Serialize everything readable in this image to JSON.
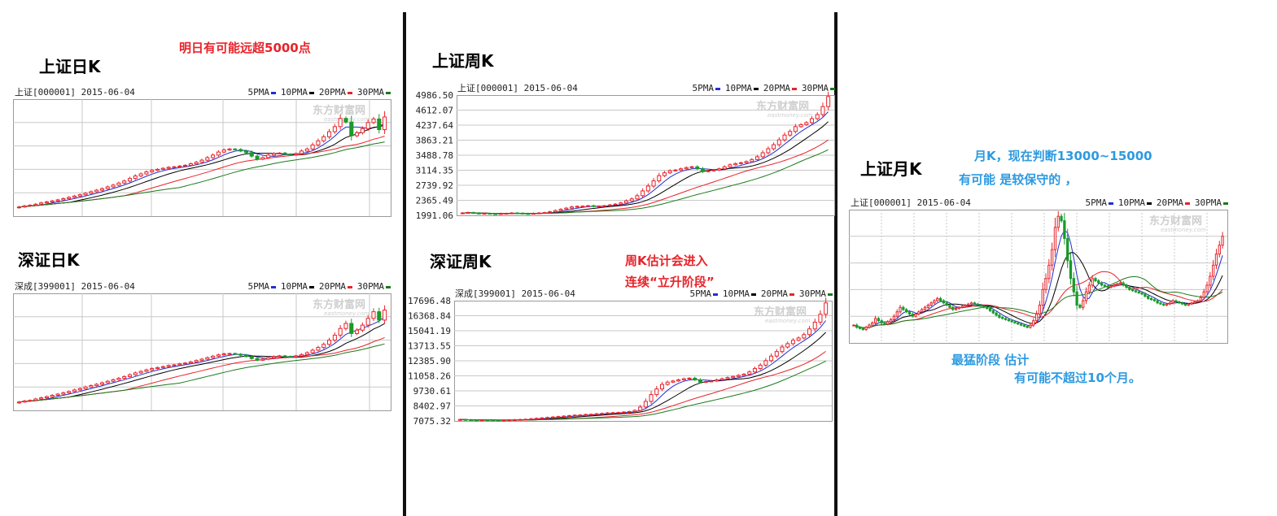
{
  "sections": {
    "sh_daily_title": "上证日K",
    "sz_daily_title": "深证日K",
    "sh_weekly_title": "上证周K",
    "sz_weekly_title": "深证周K",
    "sh_monthly_title": "上证月K"
  },
  "notes": {
    "daily": "明日有可能远超5000点",
    "weekly_1": "周K估计会进入",
    "weekly_2": "连续“立升阶段”",
    "monthly_1": "月K，现在判断13000~15000",
    "monthly_2": "有可能 是较保守的 ，",
    "monthly_3": "最猛阶段 估计",
    "monthly_4": "有可能不超过10个月。"
  },
  "colors": {
    "up": "#e8232a",
    "down": "#1a9a2a",
    "ma5": "#1f2fd4",
    "ma10": "#000000",
    "ma20": "#e8232a",
    "ma30": "#1a7a1a",
    "grid": "#c8c8c8",
    "note_red": "#e8232a",
    "note_blue": "#2d9ae0"
  },
  "watermark": {
    "cn": "东方财富网",
    "en": "eastmoney.com"
  },
  "chart_data": [
    {
      "id": "sh_daily",
      "type": "candlestick",
      "header": "上证[000001] 2015-06-04",
      "legend": [
        "5PMA",
        "10PMA",
        "20PMA",
        "30PMA"
      ],
      "y_ticks": [],
      "ylim": [
        3000,
        5300
      ],
      "close": [
        3180,
        3200,
        3215,
        3235,
        3260,
        3280,
        3300,
        3320,
        3345,
        3370,
        3395,
        3420,
        3450,
        3480,
        3510,
        3540,
        3575,
        3610,
        3650,
        3690,
        3740,
        3790,
        3830,
        3870,
        3900,
        3920,
        3940,
        3960,
        3970,
        3985,
        4000,
        4030,
        4060,
        4100,
        4150,
        4200,
        4260,
        4300,
        4320,
        4310,
        4280,
        4250,
        4180,
        4120,
        4150,
        4200,
        4230,
        4240,
        4220,
        4210,
        4230,
        4280,
        4320,
        4400,
        4480,
        4560,
        4660,
        4760,
        4920,
        4850,
        4580,
        4640,
        4720,
        4840,
        4910,
        4700,
        4950
      ]
    },
    {
      "id": "sz_daily",
      "type": "candlestick",
      "header": "深成[399001] 2015-06-04",
      "legend": [
        "5PMA",
        "10PMA",
        "20PMA",
        "30PMA"
      ],
      "y_ticks": [],
      "ylim": [
        11000,
        18000
      ],
      "close": [
        11500,
        11560,
        11600,
        11680,
        11750,
        11820,
        11900,
        11970,
        12050,
        12130,
        12220,
        12300,
        12400,
        12480,
        12560,
        12650,
        12740,
        12830,
        12920,
        13020,
        13130,
        13240,
        13330,
        13420,
        13500,
        13560,
        13620,
        13680,
        13720,
        13780,
        13830,
        13900,
        13980,
        14060,
        14150,
        14240,
        14320,
        14380,
        14400,
        14360,
        14300,
        14220,
        14100,
        14000,
        14060,
        14150,
        14220,
        14260,
        14230,
        14200,
        14260,
        14340,
        14450,
        14600,
        14760,
        14950,
        15200,
        15500,
        15900,
        16200,
        15600,
        15800,
        16100,
        16500,
        16900,
        16400,
        17000
      ]
    },
    {
      "id": "sh_weekly",
      "type": "candlestick",
      "header": "上证[000001] 2015-06-04",
      "legend": [
        "5PMA",
        "10PMA",
        "20PMA",
        "30PMA"
      ],
      "y_ticks": [
        "4986.50",
        "4612.07",
        "4237.64",
        "3863.21",
        "3488.78",
        "3114.35",
        "2739.92",
        "2365.49",
        "1991.06"
      ],
      "ylim": [
        1991.06,
        4986.5
      ],
      "close": [
        2050,
        2060,
        2045,
        2030,
        2040,
        2030,
        2025,
        2035,
        2040,
        2050,
        2045,
        2035,
        2030,
        2040,
        2050,
        2060,
        2080,
        2110,
        2140,
        2170,
        2200,
        2215,
        2220,
        2230,
        2210,
        2220,
        2230,
        2250,
        2270,
        2300,
        2350,
        2400,
        2480,
        2600,
        2720,
        2850,
        2980,
        3050,
        3100,
        3120,
        3150,
        3180,
        3200,
        3150,
        3080,
        3100,
        3120,
        3150,
        3200,
        3250,
        3280,
        3300,
        3330,
        3380,
        3450,
        3550,
        3650,
        3750,
        3870,
        3990,
        4080,
        4200,
        4250,
        4300,
        4400,
        4500,
        4700,
        4950
      ]
    },
    {
      "id": "sz_weekly",
      "type": "candlestick",
      "header": "深成[399001] 2015-06-04",
      "legend": [
        "5PMA",
        "10PMA",
        "20PMA",
        "30PMA"
      ],
      "y_ticks": [
        "17696.48",
        "16368.84",
        "15041.19",
        "13713.55",
        "12385.90",
        "11058.26",
        "9730.61",
        "8402.97",
        "7075.32"
      ],
      "ylim": [
        7075.32,
        17696.48
      ],
      "close": [
        7200,
        7180,
        7150,
        7140,
        7160,
        7150,
        7130,
        7120,
        7140,
        7160,
        7180,
        7200,
        7220,
        7260,
        7300,
        7340,
        7380,
        7420,
        7460,
        7500,
        7540,
        7580,
        7600,
        7640,
        7660,
        7700,
        7740,
        7780,
        7800,
        7820,
        7860,
        7900,
        8000,
        8300,
        8800,
        9400,
        9900,
        10300,
        10500,
        10600,
        10700,
        10800,
        10850,
        10700,
        10500,
        10550,
        10600,
        10700,
        10800,
        10900,
        11000,
        11100,
        11200,
        11400,
        11700,
        12000,
        12400,
        12800,
        13200,
        13600,
        13900,
        14200,
        14400,
        14700,
        15200,
        15800,
        16500,
        17500
      ]
    },
    {
      "id": "sh_monthly",
      "type": "candlestick",
      "header": "上证[000001] 2015-06-04",
      "legend": [
        "5PMA",
        "10PMA",
        "20PMA",
        "30PMA"
      ],
      "y_ticks": [],
      "ylim": [
        300,
        6300
      ],
      "close": [
        1100,
        1000,
        950,
        900,
        1000,
        1100,
        1200,
        1400,
        1300,
        1200,
        1150,
        1250,
        1350,
        1500,
        1700,
        1900,
        1800,
        1700,
        1600,
        1500,
        1600,
        1700,
        1800,
        1900,
        2000,
        2100,
        2200,
        2300,
        2200,
        2100,
        2000,
        1900,
        1800,
        1850,
        1900,
        1950,
        2000,
        2050,
        2100,
        2050,
        2000,
        1950,
        1900,
        1850,
        1750,
        1650,
        1550,
        1450,
        1400,
        1350,
        1300,
        1250,
        1200,
        1150,
        1100,
        1050,
        1000,
        1100,
        1300,
        1600,
        2000,
        2700,
        3200,
        3800,
        4500,
        5500,
        6000,
        5800,
        5000,
        4000,
        3200,
        2600,
        2000,
        1900,
        2200,
        2600,
        2900,
        3200,
        3100,
        3000,
        2900,
        2850,
        2800,
        2850,
        2900,
        2950,
        3000,
        2900,
        2800,
        2700,
        2650,
        2600,
        2550,
        2500,
        2400,
        2300,
        2250,
        2200,
        2100,
        2050,
        2000,
        2050,
        2100,
        2200,
        2150,
        2100,
        2050,
        2000,
        2050,
        2100,
        2150,
        2200,
        2350,
        2600,
        2900,
        3300,
        3800,
        4300,
        4700,
        5100
      ]
    }
  ]
}
